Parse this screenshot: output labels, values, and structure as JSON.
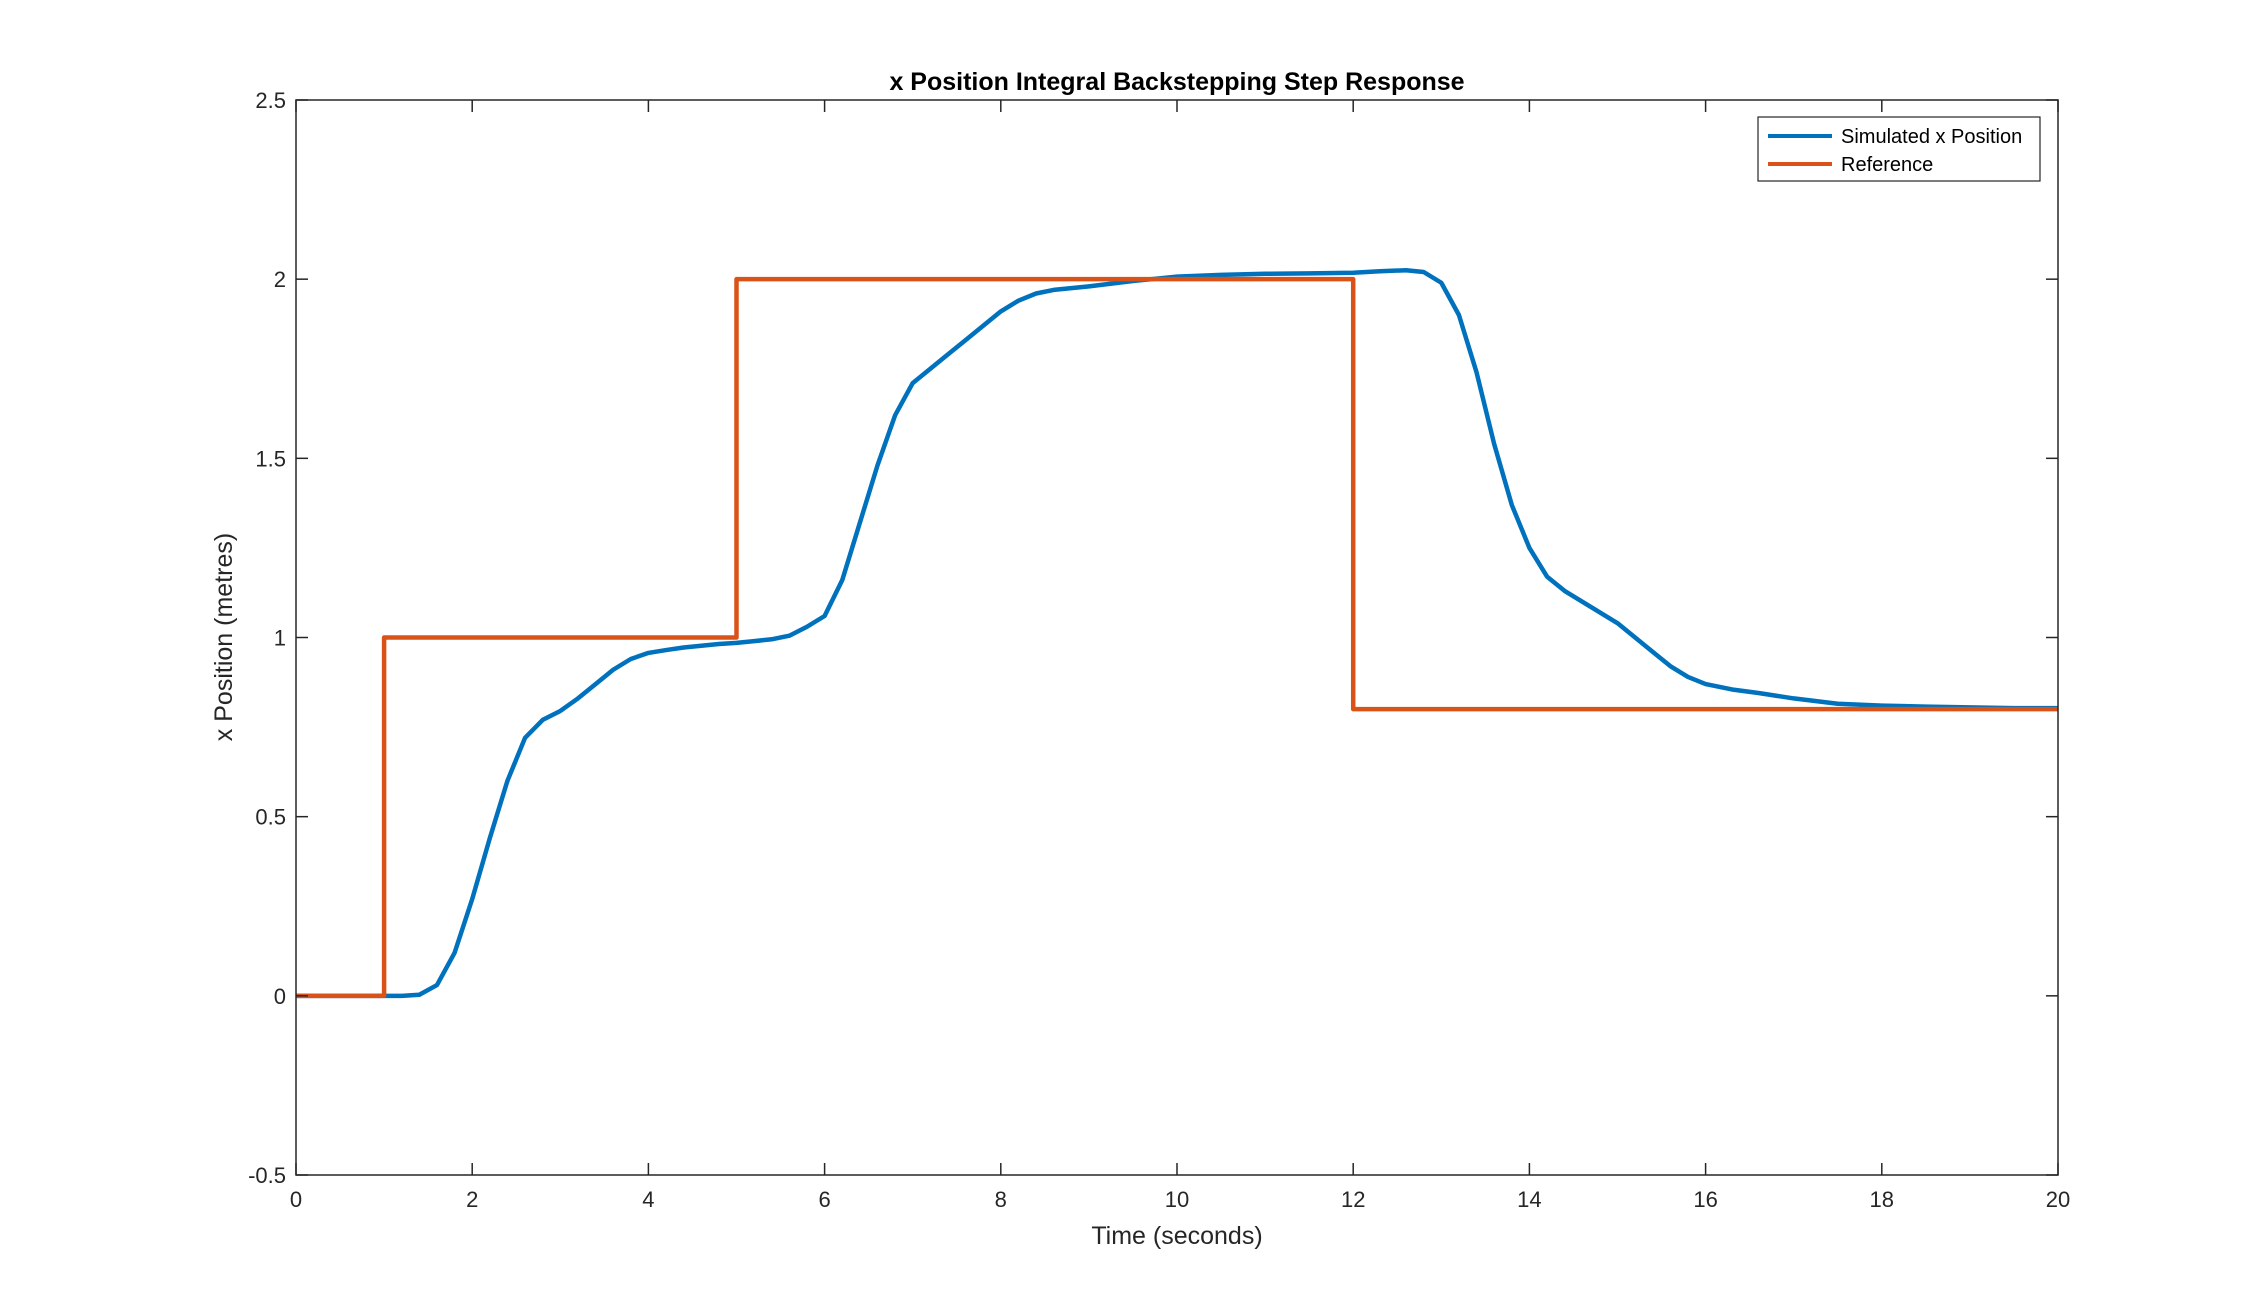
{
  "chart_data": {
    "type": "line",
    "title": "x Position Integral Backstepping Step Response",
    "xlabel": "Time (seconds)",
    "ylabel": "x Position (metres)",
    "xlim": [
      0,
      20
    ],
    "ylim": [
      -0.5,
      2.5
    ],
    "xticks": [
      0,
      2,
      4,
      6,
      8,
      10,
      12,
      14,
      16,
      18,
      20
    ],
    "yticks": [
      -0.5,
      0,
      0.5,
      1,
      1.5,
      2,
      2.5
    ],
    "xtick_labels": [
      "0",
      "2",
      "4",
      "6",
      "8",
      "10",
      "12",
      "14",
      "16",
      "18",
      "20"
    ],
    "ytick_labels": [
      "-0.5",
      "0",
      "0.5",
      "1",
      "1.5",
      "2",
      "2.5"
    ],
    "grid": false,
    "legend_position": "top-right",
    "series": [
      {
        "name": "Simulated x Position",
        "color": "#0072BD",
        "x": [
          0,
          0.5,
          1.0,
          1.2,
          1.4,
          1.6,
          1.8,
          2.0,
          2.2,
          2.4,
          2.6,
          2.8,
          3.0,
          3.2,
          3.4,
          3.6,
          3.8,
          4.0,
          4.2,
          4.4,
          4.6,
          4.8,
          5.0,
          5.2,
          5.4,
          5.6,
          5.8,
          6.0,
          6.2,
          6.4,
          6.6,
          6.8,
          7.0,
          7.2,
          7.4,
          7.6,
          7.8,
          8.0,
          8.2,
          8.4,
          8.6,
          8.8,
          9.0,
          9.5,
          10.0,
          10.5,
          11.0,
          11.5,
          12.0,
          12.3,
          12.6,
          12.8,
          13.0,
          13.2,
          13.4,
          13.6,
          13.8,
          14.0,
          14.2,
          14.4,
          14.6,
          14.8,
          15.0,
          15.2,
          15.4,
          15.6,
          15.8,
          16.0,
          16.3,
          16.6,
          17.0,
          17.5,
          18.0,
          18.5,
          19.0,
          19.5,
          20.0
        ],
        "y": [
          0,
          0,
          0,
          0.0,
          0.003,
          0.03,
          0.12,
          0.27,
          0.44,
          0.6,
          0.72,
          0.77,
          0.795,
          0.83,
          0.87,
          0.91,
          0.94,
          0.957,
          0.965,
          0.972,
          0.977,
          0.982,
          0.985,
          0.99,
          0.995,
          1.005,
          1.03,
          1.06,
          1.16,
          1.32,
          1.48,
          1.62,
          1.71,
          1.75,
          1.79,
          1.83,
          1.87,
          1.91,
          1.94,
          1.96,
          1.97,
          1.975,
          1.98,
          1.995,
          2.007,
          2.012,
          2.015,
          2.016,
          2.018,
          2.022,
          2.025,
          2.02,
          1.99,
          1.9,
          1.74,
          1.54,
          1.37,
          1.25,
          1.17,
          1.13,
          1.1,
          1.07,
          1.04,
          1.0,
          0.96,
          0.92,
          0.89,
          0.87,
          0.855,
          0.845,
          0.83,
          0.815,
          0.81,
          0.807,
          0.805,
          0.803,
          0.803
        ]
      },
      {
        "name": "Reference",
        "color": "#D95319",
        "x": [
          0,
          1,
          1,
          5,
          5,
          12,
          12,
          20
        ],
        "y": [
          0,
          0,
          1,
          1,
          2,
          2,
          0.8,
          0.8
        ]
      }
    ]
  }
}
